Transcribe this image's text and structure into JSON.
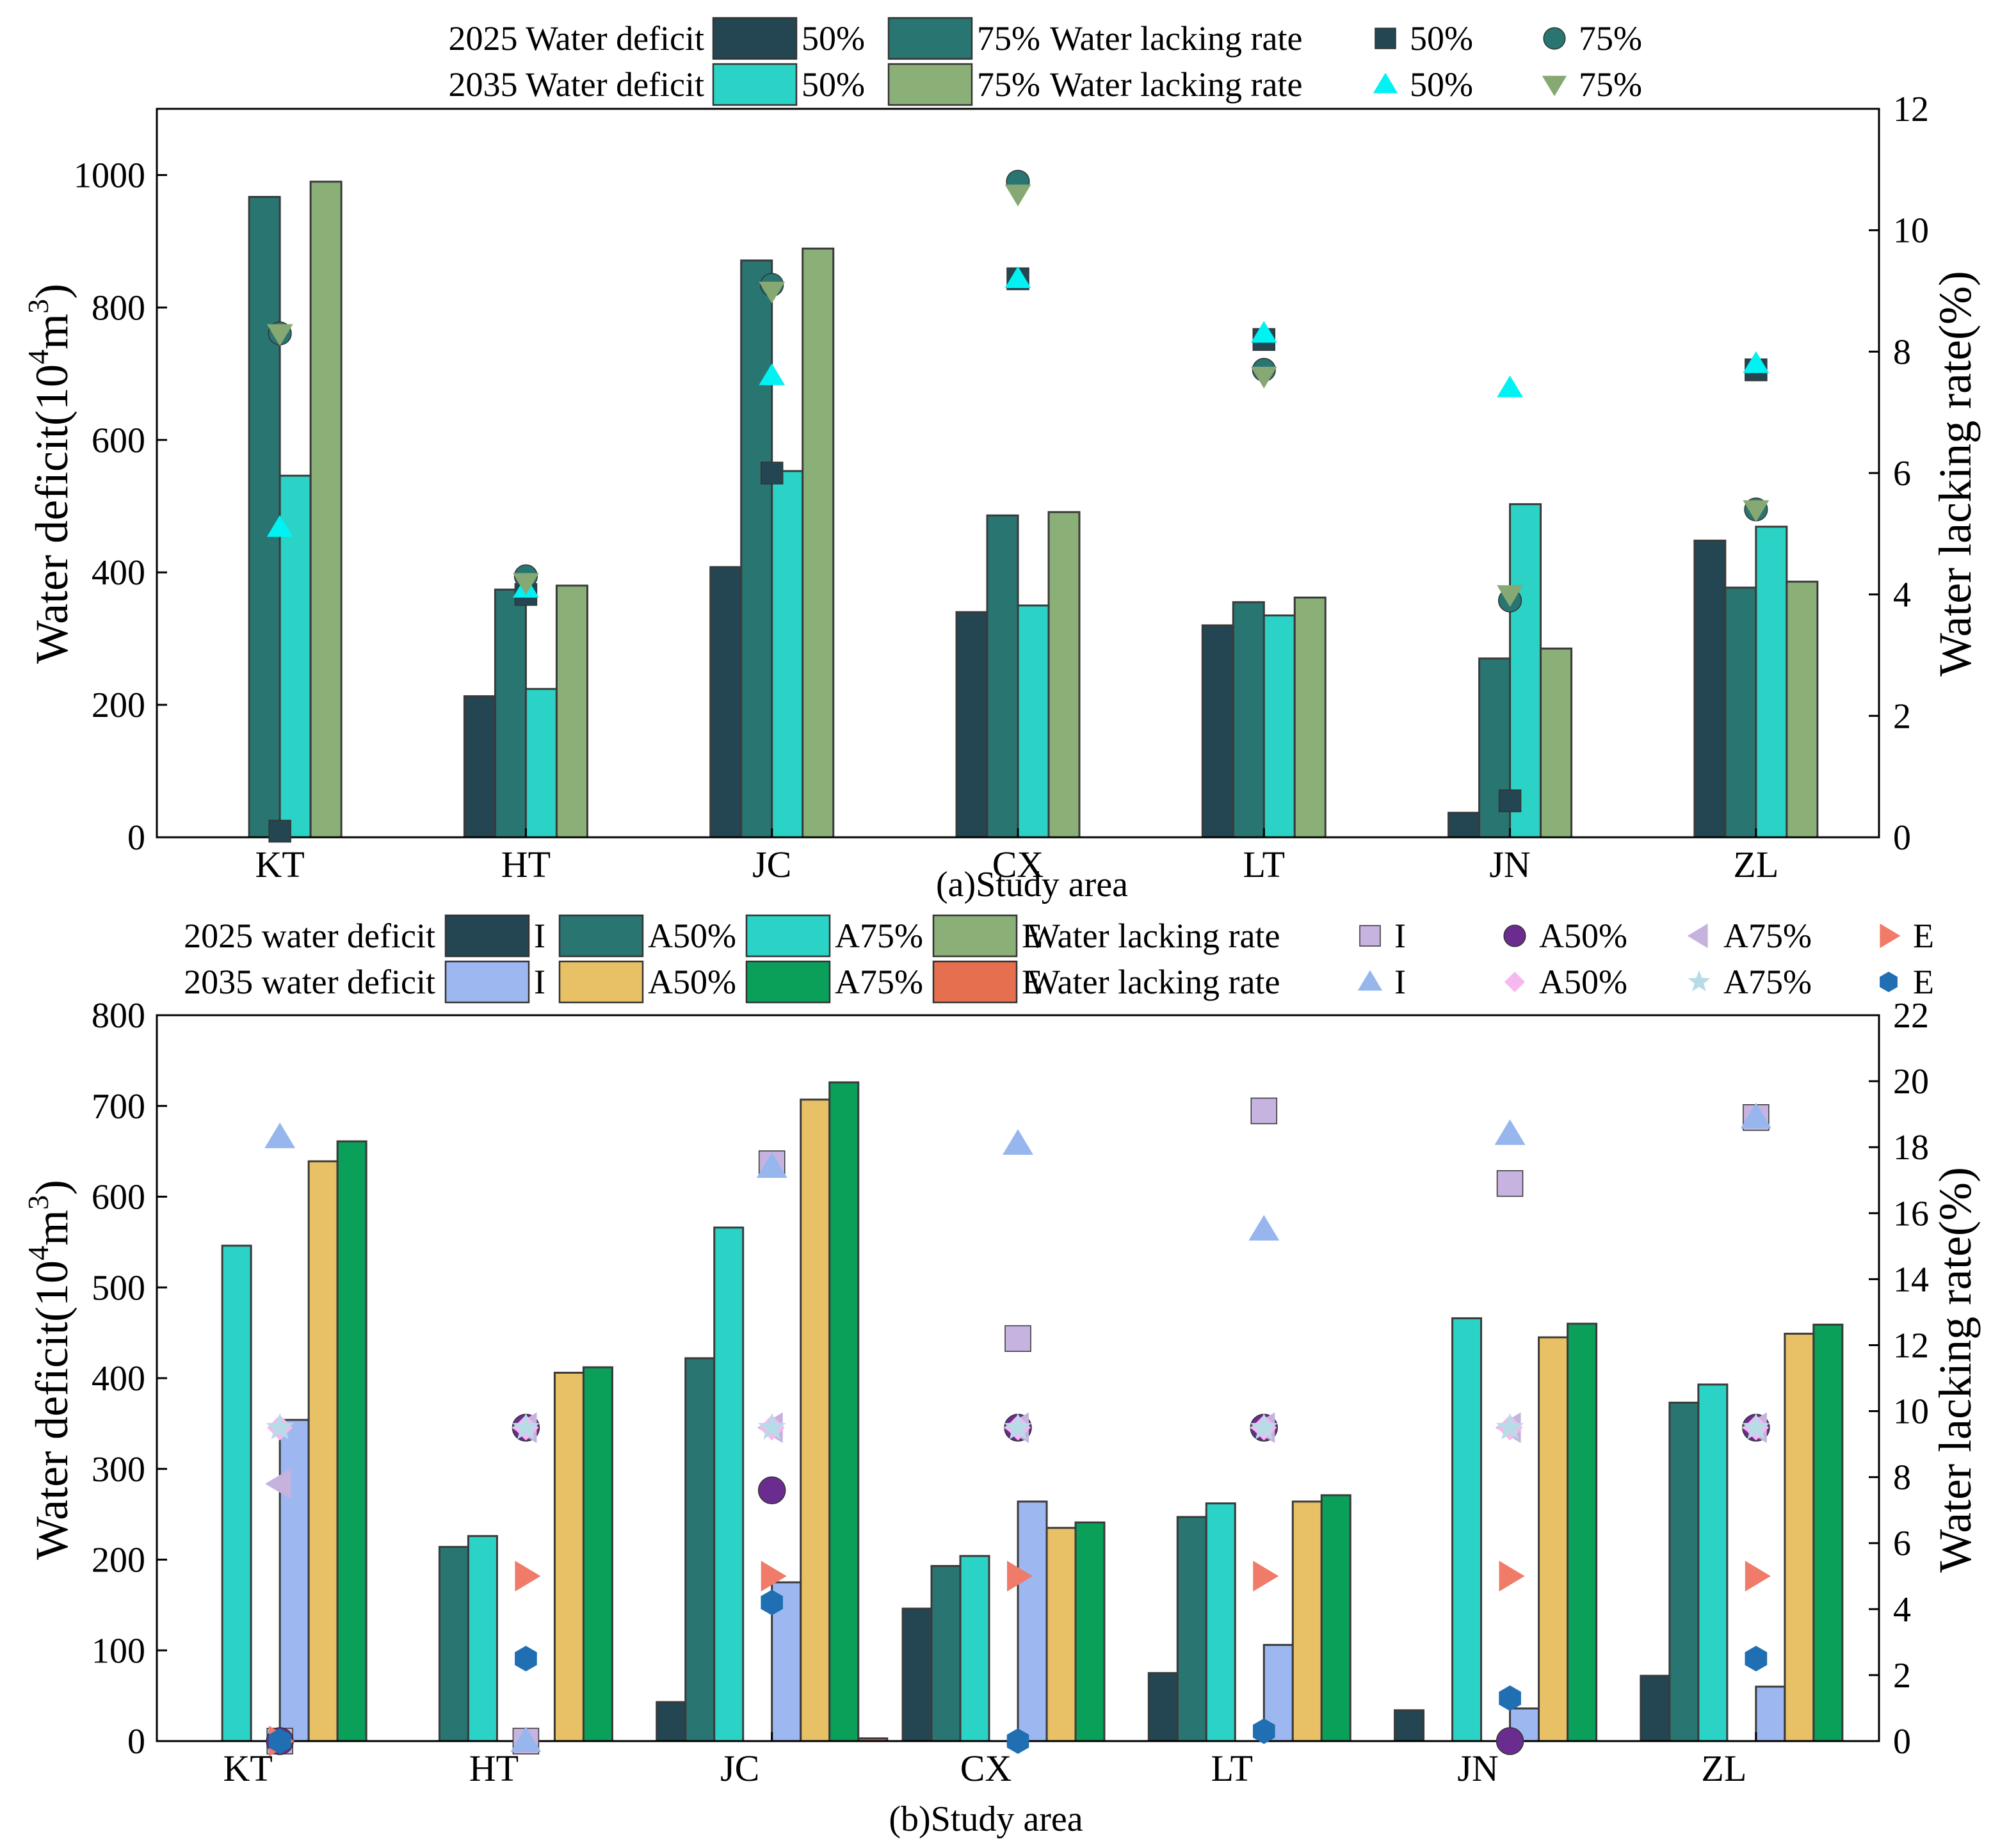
{
  "chart_data": [
    {
      "type": "bar",
      "panel": "a",
      "xlabel": "(a)Study area",
      "ylabel": "Water deficit(10^4m^3)",
      "ylabel_parts": {
        "base": "Water deficit(10",
        "exp1": "4",
        "mid": "m",
        "exp2": "3",
        "end": ")"
      },
      "y2label": "Water lacking rate(%)",
      "ylim": [
        0,
        1100
      ],
      "yticks": [
        0,
        200,
        400,
        600,
        800,
        1000
      ],
      "y2lim": [
        0,
        12
      ],
      "y2ticks": [
        0,
        2,
        4,
        6,
        8,
        10,
        12
      ],
      "categories": [
        "KT",
        "HT",
        "JC",
        "CX",
        "LT",
        "JN",
        "ZL"
      ],
      "legend": {
        "row1_label": "2025 Water deficit",
        "row2_label": "2035 Water deficit",
        "rate_label": "Water lacking rate",
        "bar_names": [
          "50%",
          "75%",
          "50%",
          "75%"
        ],
        "marker_names": [
          "50%",
          "75%",
          "50%",
          "75%"
        ]
      },
      "series": [
        {
          "name": "2025 50%",
          "kind": "bar",
          "color": "#244552",
          "values": [
            0,
            213,
            408,
            340,
            320,
            37,
            448
          ]
        },
        {
          "name": "2025 75%",
          "kind": "bar",
          "color": "#287572",
          "values": [
            967,
            374,
            871,
            486,
            355,
            270,
            377
          ]
        },
        {
          "name": "2035 50%",
          "kind": "bar",
          "color": "#2ad3c6",
          "values": [
            546,
            224,
            553,
            350,
            335,
            503,
            469
          ]
        },
        {
          "name": "2035 75%",
          "kind": "bar",
          "color": "#8bb077",
          "values": [
            990,
            380,
            889,
            491,
            362,
            285,
            386
          ]
        },
        {
          "name": "2025 rate 50%",
          "kind": "marker",
          "shape": "square",
          "color": "#244552",
          "values": [
            0.1,
            4.0,
            6.0,
            9.2,
            8.2,
            0.6,
            7.7
          ]
        },
        {
          "name": "2025 rate 75%",
          "kind": "marker",
          "shape": "circle",
          "color": "#287572",
          "values": [
            8.3,
            4.3,
            9.1,
            10.8,
            7.7,
            3.9,
            5.4
          ]
        },
        {
          "name": "2035 rate 50%",
          "kind": "marker",
          "shape": "triangle-up",
          "color": "#00f2f2",
          "values": [
            5.1,
            4.1,
            7.6,
            9.2,
            8.3,
            7.4,
            7.8
          ]
        },
        {
          "name": "2035 rate 75%",
          "kind": "marker",
          "shape": "triangle-down",
          "color": "#86a873",
          "values": [
            8.3,
            4.2,
            9.0,
            10.6,
            7.6,
            4.0,
            5.4
          ]
        }
      ]
    },
    {
      "type": "bar",
      "panel": "b",
      "xlabel": "(b)Study area",
      "ylabel": "Water deficit(10^4m^3)",
      "ylabel_parts": {
        "base": "Water deficit(10",
        "exp1": "4",
        "mid": "m",
        "exp2": "3",
        "end": ")"
      },
      "y2label": "Water lacking rate(%)",
      "ylim": [
        0,
        800
      ],
      "yticks": [
        0,
        100,
        200,
        300,
        400,
        500,
        600,
        700,
        800
      ],
      "y2lim": [
        0,
        22
      ],
      "y2ticks": [
        0,
        2,
        4,
        6,
        8,
        10,
        12,
        14,
        16,
        18,
        20,
        22
      ],
      "categories": [
        "KT",
        "HT",
        "JC",
        "CX",
        "LT",
        "JN",
        "ZL"
      ],
      "legend": {
        "row1_label": "2025 water deficit",
        "row2_label": "2035 water deficit",
        "rate_label": "Water lacking rate",
        "bar_names": [
          "I",
          "A50%",
          "A75%",
          "E",
          "I",
          "A50%",
          "A75%",
          "E"
        ],
        "marker_names": [
          "I",
          "A50%",
          "A75%",
          "E",
          "I",
          "A50%",
          "A75%",
          "E"
        ]
      },
      "series": [
        {
          "name": "2025 I",
          "kind": "bar",
          "color": "#244552",
          "values": [
            0,
            0,
            43,
            146,
            75,
            34,
            72
          ]
        },
        {
          "name": "2025 A50%",
          "kind": "bar",
          "color": "#287572",
          "values": [
            0,
            214,
            422,
            193,
            247,
            0,
            373
          ]
        },
        {
          "name": "2025 A75%",
          "kind": "bar",
          "color": "#2ad3c6",
          "values": [
            546,
            226,
            566,
            204,
            262,
            466,
            393
          ]
        },
        {
          "name": "2025 E",
          "kind": "bar",
          "color": "#8bb077",
          "values": [
            0,
            0,
            0,
            0,
            0,
            0,
            0
          ]
        },
        {
          "name": "2035 I",
          "kind": "bar",
          "color": "#9db8f0",
          "values": [
            354,
            0,
            175,
            264,
            106,
            36,
            60
          ]
        },
        {
          "name": "2035 A50%",
          "kind": "bar",
          "color": "#e8c166",
          "values": [
            639,
            406,
            707,
            235,
            264,
            445,
            449
          ]
        },
        {
          "name": "2035 A75%",
          "kind": "bar",
          "color": "#0aa05a",
          "values": [
            661,
            412,
            726,
            241,
            271,
            460,
            459
          ]
        },
        {
          "name": "2035 E",
          "kind": "bar",
          "color": "#e66f50",
          "values": [
            0,
            0,
            3,
            0,
            0,
            0,
            0
          ]
        },
        {
          "name": "2025 rate I",
          "kind": "marker",
          "shape": "square",
          "color": "#c7b3e0",
          "values": [
            0,
            0,
            17.5,
            12.2,
            19.1,
            16.9,
            18.9
          ]
        },
        {
          "name": "2025 rate A50%",
          "kind": "marker",
          "shape": "circle",
          "color": "#6b2c8f",
          "values": [
            0,
            9.5,
            7.6,
            9.5,
            9.5,
            0,
            9.5
          ]
        },
        {
          "name": "2025 rate A75%",
          "kind": "marker",
          "shape": "triangle-left",
          "color": "#c5b3de",
          "values": [
            7.8,
            9.5,
            9.5,
            9.5,
            9.5,
            9.5,
            9.5
          ]
        },
        {
          "name": "2025 rate E",
          "kind": "marker",
          "shape": "triangle-right",
          "color": "#ef7b68",
          "values": [
            0,
            5.0,
            5.0,
            5.0,
            5.0,
            5.0,
            5.0
          ]
        },
        {
          "name": "2035 rate I",
          "kind": "marker",
          "shape": "triangle-up",
          "color": "#97b6ee",
          "values": [
            18.3,
            0,
            17.4,
            18.1,
            15.5,
            18.4,
            18.9
          ]
        },
        {
          "name": "2035 rate A50%",
          "kind": "marker",
          "shape": "diamond",
          "color": "#f5b8ef",
          "values": [
            9.5,
            9.5,
            9.5,
            9.5,
            9.5,
            9.5,
            9.5
          ]
        },
        {
          "name": "2035 rate A75%",
          "kind": "marker",
          "shape": "star",
          "color": "#b8dbe8",
          "values": [
            9.5,
            9.5,
            9.5,
            9.5,
            9.5,
            9.5,
            9.5
          ]
        },
        {
          "name": "2035 rate E",
          "kind": "marker",
          "shape": "hexagon",
          "color": "#1f6fb2",
          "values": [
            0,
            2.5,
            4.2,
            0,
            0.3,
            1.3,
            2.5
          ]
        }
      ]
    }
  ]
}
